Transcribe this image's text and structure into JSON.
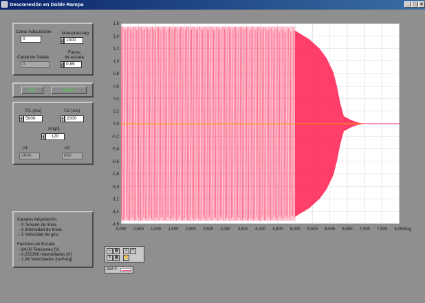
{
  "window": {
    "title": "Desconexión en Doble Rampa",
    "controls": [
      "_",
      "□",
      "×"
    ]
  },
  "acquisition": {
    "canal_adquisicion_label": "Canal Adquisición",
    "canal_adquisicion_value": "0",
    "muestras_label": "Muestras/seg",
    "muestras_value": "1000",
    "canal_salida_label": "Canal de Salida",
    "canal_salida_value": "0",
    "factor_label_1": "Factor",
    "factor_label_2": "de escala",
    "factor_value": "0.89"
  },
  "buttons": {
    "start_label": "Inic.",
    "stop_label": "Parar"
  },
  "ramp": {
    "t1_label": "T/1 (ms)",
    "t1_value": "5000",
    "t2_label": "T/2 (ms)",
    "t2_value": "2000",
    "ang_label": "Ang/1",
    "ang_value": "120",
    "n1_label": "n1",
    "n1_value": "2000",
    "n2_label": "n2",
    "n2_value": "800"
  },
  "info": {
    "canales_title": "Canales Adquisición:",
    "canales_lines": [
      "- 0 Tensión de línea.",
      "- 3 Intensidad de línea.",
      "- 2 Velocidad de giro."
    ],
    "factores_title": "Factores de Escala:",
    "factores_lines": [
      "- 84,00 Tensiones [V]",
      "- 0,052399 Intensidades [A]",
      "- 1,34 Velocidades [rad/seg]"
    ]
  },
  "plot": {
    "legend_label": "plot 0"
  },
  "chart_data": {
    "type": "line",
    "title": "",
    "xlabel": "Seg",
    "ylabel": "",
    "xlim": [
      0,
      8
    ],
    "ylim": [
      -1.6,
      1.6
    ],
    "x_ticks": [
      "0,000",
      "0,500",
      "1,000",
      "1,500",
      "2,000",
      "2,500",
      "3,000",
      "3,500",
      "4,000",
      "4,500",
      "5,000",
      "5,500",
      "6,000",
      "6,500",
      "7,000",
      "7,500",
      "8,000"
    ],
    "y_ticks": [
      "1,6",
      "1,4",
      "1,2",
      "1,0",
      "0,8",
      "0,6",
      "0,4",
      "0,2",
      "0,0",
      "-0,2",
      "-0,4",
      "-0,6",
      "-0,8",
      "-1,0",
      "-1,2",
      "-1,4",
      "-1,6"
    ],
    "grid": true,
    "colors": {
      "signal": "#ff2a5a",
      "zero_line": "#f0a000",
      "background": "#ffffff",
      "grid": "#d8d8d8"
    },
    "envelope": [
      {
        "x": 0.0,
        "y": 1.55
      },
      {
        "x": 1.0,
        "y": 1.55
      },
      {
        "x": 2.0,
        "y": 1.55
      },
      {
        "x": 3.0,
        "y": 1.55
      },
      {
        "x": 4.0,
        "y": 1.55
      },
      {
        "x": 4.9,
        "y": 1.52
      },
      {
        "x": 5.1,
        "y": 1.45
      },
      {
        "x": 5.4,
        "y": 1.35
      },
      {
        "x": 5.7,
        "y": 1.2
      },
      {
        "x": 5.9,
        "y": 1.05
      },
      {
        "x": 6.1,
        "y": 0.82
      },
      {
        "x": 6.2,
        "y": 0.6
      },
      {
        "x": 6.3,
        "y": 0.32
      },
      {
        "x": 6.4,
        "y": 0.12
      },
      {
        "x": 6.6,
        "y": 0.06
      },
      {
        "x": 6.8,
        "y": 0.02
      },
      {
        "x": 7.0,
        "y": 0.0
      },
      {
        "x": 8.0,
        "y": 0.0
      }
    ],
    "series": [
      {
        "values_described_by": "envelope"
      }
    ]
  }
}
